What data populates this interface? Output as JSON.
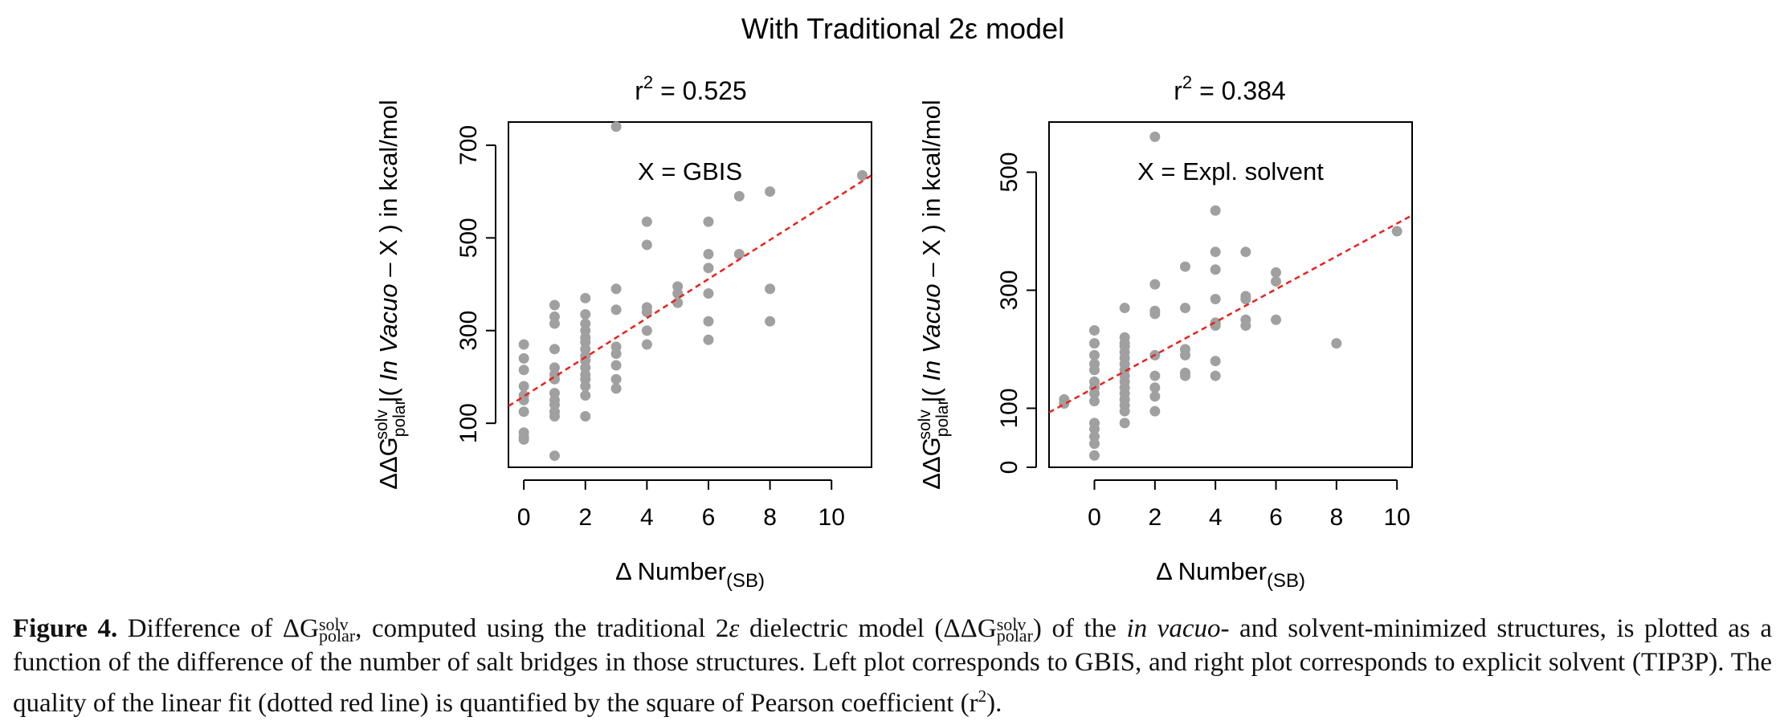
{
  "figure": {
    "suptitle": "With  Traditional 2ε model"
  },
  "chart_data": [
    {
      "type": "scatter",
      "title": "r² = 0.525",
      "r_squared": 0.525,
      "annotation": "X = GBIS",
      "xlabel": "Δ Number(SB)",
      "ylabel": "ΔΔG solv polar |( In Vacuo – X ) in kcal/mol",
      "xlim": [
        -0.5,
        11.3
      ],
      "ylim": [
        5,
        750
      ],
      "xticks": [
        0,
        2,
        4,
        6,
        8,
        10
      ],
      "yticks": [
        100,
        300,
        500,
        700
      ],
      "point_color": "#a0a0a0",
      "fit_line": {
        "style": "dotted",
        "color": "#e8231e",
        "y_at_xmin": 137,
        "y_at_xmax": 635
      },
      "points": [
        [
          0,
          270
        ],
        [
          0,
          240
        ],
        [
          0,
          215
        ],
        [
          0,
          180
        ],
        [
          0,
          160
        ],
        [
          0,
          150
        ],
        [
          0,
          125
        ],
        [
          0,
          80
        ],
        [
          0,
          70
        ],
        [
          0,
          65
        ],
        [
          1,
          355
        ],
        [
          1,
          330
        ],
        [
          1,
          315
        ],
        [
          1,
          260
        ],
        [
          1,
          220
        ],
        [
          1,
          205
        ],
        [
          1,
          195
        ],
        [
          1,
          165
        ],
        [
          1,
          150
        ],
        [
          1,
          140
        ],
        [
          1,
          125
        ],
        [
          1,
          115
        ],
        [
          1,
          30
        ],
        [
          2,
          370
        ],
        [
          2,
          335
        ],
        [
          2,
          315
        ],
        [
          2,
          300
        ],
        [
          2,
          285
        ],
        [
          2,
          275
        ],
        [
          2,
          260
        ],
        [
          2,
          245
        ],
        [
          2,
          235
        ],
        [
          2,
          220
        ],
        [
          2,
          205
        ],
        [
          2,
          195
        ],
        [
          2,
          180
        ],
        [
          2,
          160
        ],
        [
          2,
          115
        ],
        [
          3,
          740
        ],
        [
          3,
          390
        ],
        [
          3,
          345
        ],
        [
          3,
          265
        ],
        [
          3,
          250
        ],
        [
          3,
          225
        ],
        [
          3,
          195
        ],
        [
          3,
          175
        ],
        [
          4,
          535
        ],
        [
          4,
          485
        ],
        [
          4,
          350
        ],
        [
          4,
          340
        ],
        [
          4,
          300
        ],
        [
          4,
          270
        ],
        [
          5,
          395
        ],
        [
          5,
          380
        ],
        [
          5,
          360
        ],
        [
          6,
          535
        ],
        [
          6,
          465
        ],
        [
          6,
          435
        ],
        [
          6,
          380
        ],
        [
          6,
          320
        ],
        [
          6,
          280
        ],
        [
          7,
          590
        ],
        [
          7,
          465
        ],
        [
          8,
          600
        ],
        [
          8,
          390
        ],
        [
          8,
          320
        ],
        [
          11,
          635
        ]
      ]
    },
    {
      "type": "scatter",
      "title": "r² = 0.384",
      "r_squared": 0.384,
      "annotation": "X = Expl. solvent",
      "xlabel": "Δ Number(SB)",
      "ylabel": "ΔΔG solv polar |( In Vacuo – X ) in kcal/mol",
      "xlim": [
        -1.5,
        10.5
      ],
      "ylim": [
        0,
        585
      ],
      "xticks": [
        0,
        2,
        4,
        6,
        8,
        10
      ],
      "yticks": [
        0,
        100,
        300,
        500
      ],
      "point_color": "#a0a0a0",
      "fit_line": {
        "style": "dotted",
        "color": "#e8231e",
        "y_at_xmin": 93,
        "y_at_xmax": 427
      },
      "points": [
        [
          -1,
          115
        ],
        [
          -1,
          108
        ],
        [
          0,
          232
        ],
        [
          0,
          210
        ],
        [
          0,
          190
        ],
        [
          0,
          175
        ],
        [
          0,
          165
        ],
        [
          0,
          145
        ],
        [
          0,
          135
        ],
        [
          0,
          125
        ],
        [
          0,
          112
        ],
        [
          0,
          75
        ],
        [
          0,
          65
        ],
        [
          0,
          52
        ],
        [
          0,
          40
        ],
        [
          0,
          20
        ],
        [
          1,
          270
        ],
        [
          1,
          220
        ],
        [
          1,
          210
        ],
        [
          1,
          205
        ],
        [
          1,
          195
        ],
        [
          1,
          185
        ],
        [
          1,
          175
        ],
        [
          1,
          165
        ],
        [
          1,
          155
        ],
        [
          1,
          145
        ],
        [
          1,
          135
        ],
        [
          1,
          125
        ],
        [
          1,
          115
        ],
        [
          1,
          105
        ],
        [
          1,
          95
        ],
        [
          1,
          75
        ],
        [
          2,
          560
        ],
        [
          2,
          310
        ],
        [
          2,
          265
        ],
        [
          2,
          260
        ],
        [
          2,
          190
        ],
        [
          2,
          155
        ],
        [
          2,
          135
        ],
        [
          2,
          120
        ],
        [
          2,
          95
        ],
        [
          3,
          340
        ],
        [
          3,
          270
        ],
        [
          3,
          200
        ],
        [
          3,
          190
        ],
        [
          3,
          160
        ],
        [
          3,
          155
        ],
        [
          4,
          435
        ],
        [
          4,
          365
        ],
        [
          4,
          335
        ],
        [
          4,
          285
        ],
        [
          4,
          245
        ],
        [
          4,
          240
        ],
        [
          4,
          180
        ],
        [
          4,
          155
        ],
        [
          5,
          365
        ],
        [
          5,
          290
        ],
        [
          5,
          285
        ],
        [
          5,
          250
        ],
        [
          5,
          240
        ],
        [
          6,
          330
        ],
        [
          6,
          315
        ],
        [
          6,
          250
        ],
        [
          8,
          210
        ],
        [
          10,
          400
        ]
      ]
    }
  ],
  "caption": {
    "label": "Figure 4.",
    "text_1": " Difference of ΔG",
    "sub_sup": "solv / polar",
    "text_2": ", computed using the traditional 2",
    "eps": "ε",
    "text_3": " dielectric model (ΔΔG",
    "text_4": ") of the ",
    "italic_1": "in vacuo",
    "text_5": "- and solvent-minimized structures, is plotted as a function of the difference of the number of salt bridges in those structures. Left plot corresponds to GBIS, and right plot corresponds to explicit solvent (TIP3P). The quality of the linear fit (dotted red line) is quantified by the square of Pearson coefficient (r",
    "sup_2": "2",
    "text_6": ")."
  }
}
